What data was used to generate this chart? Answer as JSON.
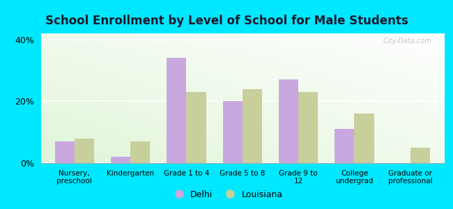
{
  "title": "School Enrollment by Level of School for Male Students",
  "categories": [
    "Nursery,\npreschool",
    "Kindergarten",
    "Grade 1 to 4",
    "Grade 5 to 8",
    "Grade 9 to\n12",
    "College\nundergrad",
    "Graduate or\nprofessional"
  ],
  "delhi": [
    7,
    2,
    34,
    20,
    27,
    11,
    0
  ],
  "louisiana": [
    8,
    7,
    23,
    24,
    23,
    16,
    5
  ],
  "delhi_color": "#c9a8e0",
  "louisiana_color": "#c8cf9a",
  "bar_width": 0.35,
  "ylim": [
    0,
    42
  ],
  "yticks": [
    0,
    20,
    40
  ],
  "ytick_labels": [
    "0%",
    "20%",
    "40%"
  ],
  "background_color": "#00e8ff",
  "title_fontsize": 12,
  "legend_labels": [
    "Delhi",
    "Louisiana"
  ],
  "watermark": "City-Data.com"
}
